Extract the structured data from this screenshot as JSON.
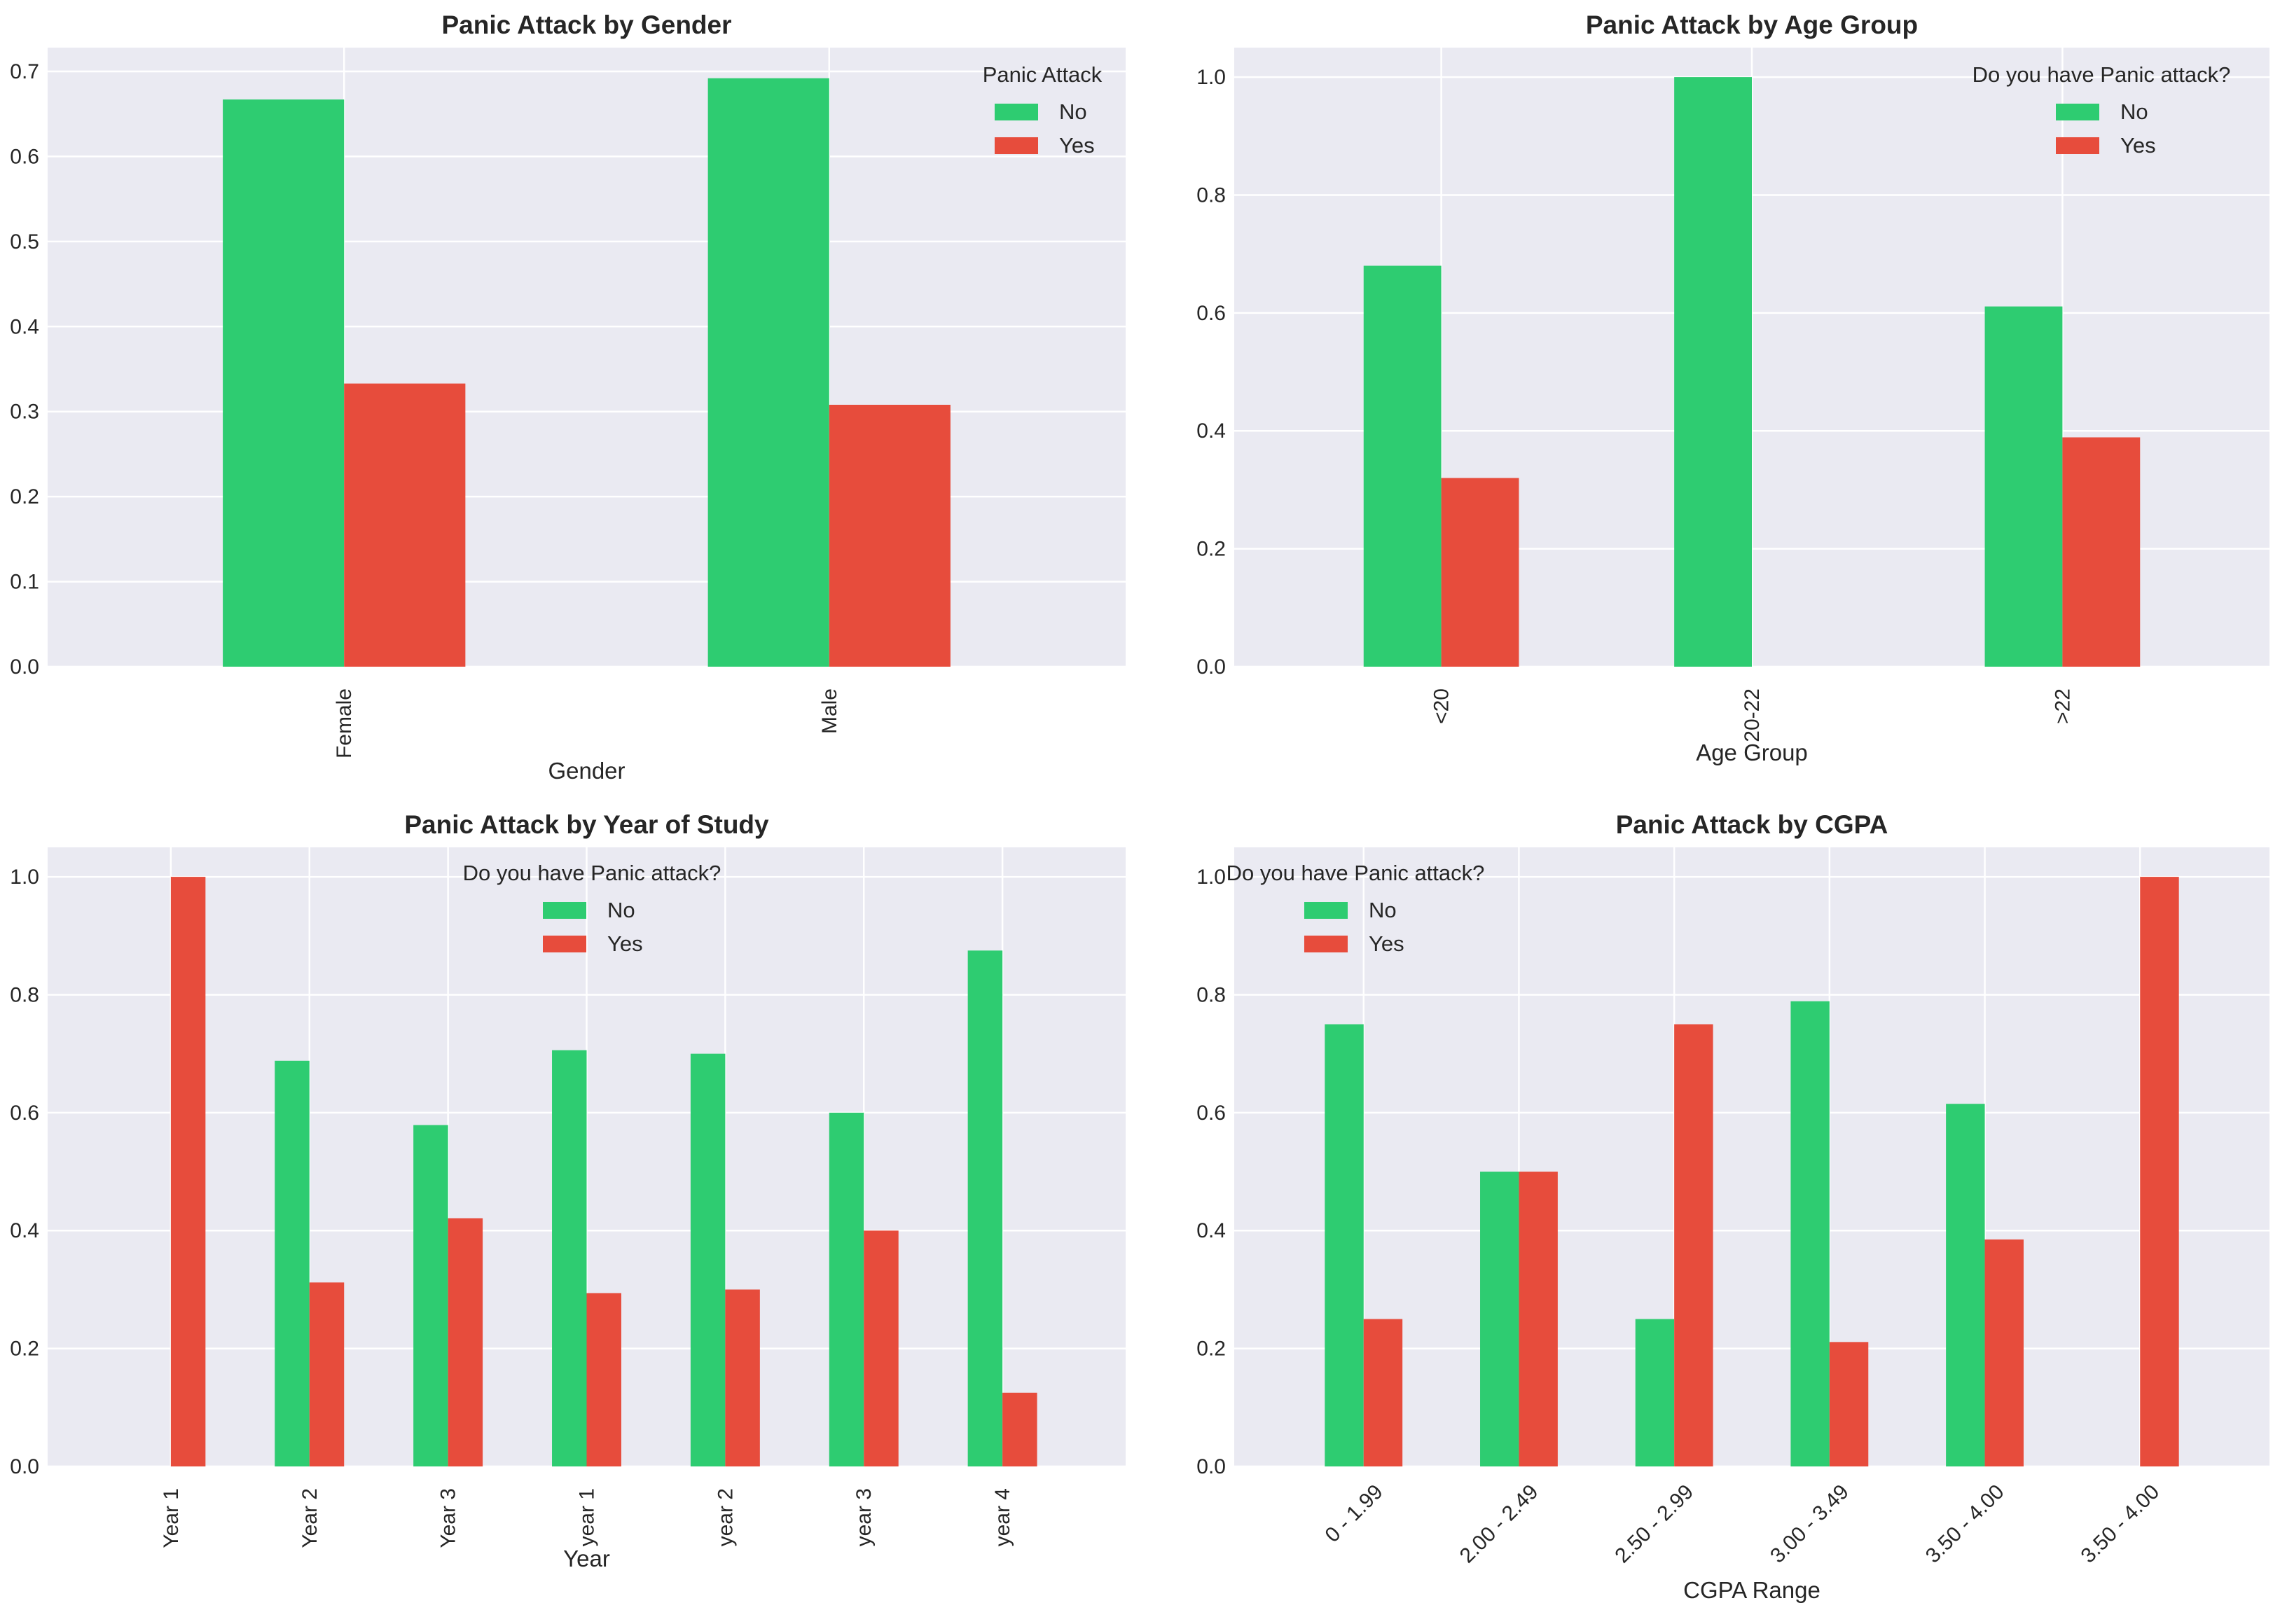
{
  "colors": {
    "no": "#2ecc71",
    "yes": "#e74c3c",
    "axes_bg": "#eaeaf2",
    "grid": "#ffffff",
    "text": "#262626"
  },
  "chart_data": [
    {
      "type": "bar",
      "title": "Panic Attack by Gender",
      "xlabel": "Gender",
      "ylabel": "",
      "categories": [
        "Female",
        "Male"
      ],
      "series": [
        {
          "name": "No",
          "values": [
            0.667,
            0.692
          ]
        },
        {
          "name": "Yes",
          "values": [
            0.333,
            0.308
          ]
        }
      ],
      "ylim": [
        0,
        0.728
      ],
      "yticks": [
        0.0,
        0.1,
        0.2,
        0.3,
        0.4,
        0.5,
        0.6,
        0.7
      ],
      "tick_decimals": 1,
      "xtick_rotation": 90,
      "legend_title": "Panic Attack",
      "legend_loc": "top-right",
      "grid": true
    },
    {
      "type": "bar",
      "title": "Panic Attack by Age Group",
      "xlabel": "Age Group",
      "ylabel": "",
      "categories": [
        "<20",
        "20-22",
        ">22"
      ],
      "series": [
        {
          "name": "No",
          "values": [
            0.68,
            1.0,
            0.611
          ]
        },
        {
          "name": "Yes",
          "values": [
            0.32,
            0.0,
            0.389
          ]
        }
      ],
      "ylim": [
        0,
        1.05
      ],
      "yticks": [
        0.0,
        0.2,
        0.4,
        0.6,
        0.8,
        1.0
      ],
      "tick_decimals": 1,
      "xtick_rotation": 90,
      "legend_title": "Do you have Panic attack?",
      "legend_loc": "top-right",
      "grid": true
    },
    {
      "type": "bar",
      "title": "Panic Attack by Year of Study",
      "xlabel": "Year",
      "ylabel": "",
      "categories": [
        "Year 1",
        "Year 2",
        "Year 3",
        "year 1",
        "year 2",
        "year 3",
        "year 4"
      ],
      "series": [
        {
          "name": "No",
          "values": [
            0.0,
            0.688,
            0.579,
            0.706,
            0.7,
            0.6,
            0.875
          ]
        },
        {
          "name": "Yes",
          "values": [
            1.0,
            0.312,
            0.421,
            0.294,
            0.3,
            0.4,
            0.125
          ]
        }
      ],
      "ylim": [
        0,
        1.05
      ],
      "yticks": [
        0.0,
        0.2,
        0.4,
        0.6,
        0.8,
        1.0
      ],
      "tick_decimals": 1,
      "xtick_rotation": 90,
      "legend_title": "Do you have Panic attack?",
      "legend_loc": "top-center",
      "grid": true
    },
    {
      "type": "bar",
      "title": "Panic Attack by CGPA",
      "xlabel": "CGPA Range",
      "ylabel": "",
      "categories": [
        "0 - 1.99",
        "2.00 - 2.49",
        "2.50 - 2.99",
        "3.00 - 3.49",
        "3.50 - 4.00",
        "3.50 - 4.00"
      ],
      "series": [
        {
          "name": "No",
          "values": [
            0.75,
            0.5,
            0.25,
            0.789,
            0.615,
            0.0
          ]
        },
        {
          "name": "Yes",
          "values": [
            0.25,
            0.5,
            0.75,
            0.211,
            0.385,
            1.0
          ]
        }
      ],
      "ylim": [
        0,
        1.05
      ],
      "yticks": [
        0.0,
        0.2,
        0.4,
        0.6,
        0.8,
        1.0
      ],
      "tick_decimals": 1,
      "xtick_rotation": 45,
      "legend_title": "Do you have Panic attack?",
      "legend_loc": "top-left",
      "grid": true
    }
  ]
}
